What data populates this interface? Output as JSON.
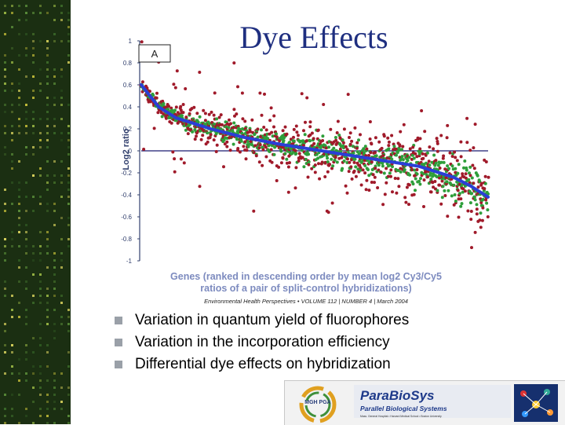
{
  "slide": {
    "title": "Dye Effects",
    "citation": "Environmental Health Perspectives • VOLUME 112 | NUMBER 4 | March 2004",
    "bullets": [
      "Variation in quantum yield of fluorophores",
      "Variation in the incorporation efficiency",
      "Differential dye effects on hybridization"
    ]
  },
  "chart_data": {
    "type": "scatter",
    "panel_label": "A",
    "ylabel": "Log2 ratio",
    "xlabel_line1": "Genes (ranked in descending order by mean log2 Cy3/Cy5",
    "xlabel_line2": "ratios of a pair of split-control hybridizations)",
    "ylim": [
      -1,
      1
    ],
    "yticks": [
      "1",
      "0.8",
      "0.6",
      "0.4",
      "0.2",
      "0",
      "-0.2",
      "-0.4",
      "-0.6",
      "-0.8",
      "-1"
    ],
    "colors": {
      "mean": "#2a3fd6",
      "replicate1": "#2e9e3a",
      "replicate2": "#a01a2a"
    },
    "trend": [
      [
        0,
        0.6
      ],
      [
        0.05,
        0.4
      ],
      [
        0.1,
        0.3
      ],
      [
        0.2,
        0.2
      ],
      [
        0.3,
        0.12
      ],
      [
        0.4,
        0.06
      ],
      [
        0.5,
        0.01
      ],
      [
        0.6,
        -0.04
      ],
      [
        0.7,
        -0.09
      ],
      [
        0.8,
        -0.14
      ],
      [
        0.9,
        -0.24
      ],
      [
        0.95,
        -0.32
      ],
      [
        1.0,
        -0.42
      ]
    ]
  },
  "logos": {
    "mgh_badge": "MGH PGA",
    "parabiosys_name": "ParaBioSys",
    "parabiosys_tagline": "Parallel Biological Systems",
    "parabiosys_partners": "Mass. General Hospital • Harvard Medical School • Boston University"
  }
}
